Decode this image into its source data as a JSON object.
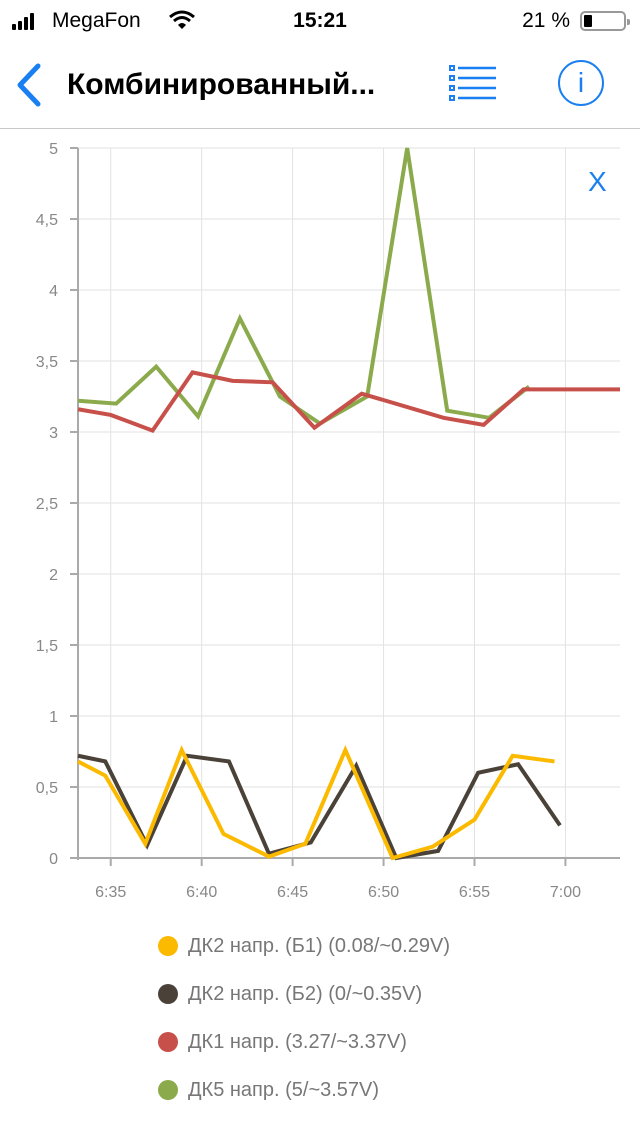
{
  "status_bar": {
    "carrier": "MegaFon",
    "time": "15:21",
    "battery": "21 %",
    "battery_level": 0.21
  },
  "nav": {
    "title": "Комбинированный...",
    "back_icon": "chevron-left-icon",
    "list_icon": "list-icon",
    "info_icon": "info-icon",
    "info_label": "i"
  },
  "close_label": "X",
  "colors": {
    "accent": "#1a7ff0"
  },
  "chart_data": {
    "type": "line",
    "title": "",
    "xlabel": "",
    "ylabel": "",
    "x_unit": "minutes after 6:30",
    "xlim": [
      3.2,
      33.0
    ],
    "ylim": [
      0,
      5
    ],
    "grid": true,
    "legend_position": "bottom",
    "y_ticks": [
      {
        "value": 0,
        "label": "0"
      },
      {
        "value": 0.5,
        "label": "0,5"
      },
      {
        "value": 1,
        "label": "1"
      },
      {
        "value": 1.5,
        "label": "1,5"
      },
      {
        "value": 2,
        "label": "2"
      },
      {
        "value": 2.5,
        "label": "2,5"
      },
      {
        "value": 3,
        "label": "3"
      },
      {
        "value": 3.5,
        "label": "3,5"
      },
      {
        "value": 4,
        "label": "4"
      },
      {
        "value": 4.5,
        "label": "4,5"
      },
      {
        "value": 5,
        "label": "5"
      }
    ],
    "x_ticks": [
      {
        "value": 5,
        "label": "6:35"
      },
      {
        "value": 10,
        "label": "6:40"
      },
      {
        "value": 15,
        "label": "6:45"
      },
      {
        "value": 20,
        "label": "6:50"
      },
      {
        "value": 25,
        "label": "6:55"
      },
      {
        "value": 30,
        "label": "7:00"
      }
    ],
    "series": [
      {
        "name": "ДК2 напр. (Б1) (0.08/~0.29V)",
        "color": "#FBBA00",
        "x": [
          3.2,
          4.7,
          6.9,
          8.9,
          11.2,
          13.7,
          15.7,
          17.9,
          20.5,
          22.7,
          25.0,
          27.1,
          29.4
        ],
        "y": [
          0.68,
          0.58,
          0.1,
          0.76,
          0.17,
          0.01,
          0.1,
          0.76,
          0.0,
          0.08,
          0.27,
          0.72,
          0.68
        ]
      },
      {
        "name": "ДК2 напр. (Б2) (0/~0.35V)",
        "color": "#4A4238",
        "x": [
          3.2,
          4.7,
          7.0,
          9.2,
          11.5,
          13.7,
          16.0,
          18.5,
          20.7,
          23.0,
          25.2,
          27.4,
          29.7
        ],
        "y": [
          0.72,
          0.68,
          0.09,
          0.72,
          0.68,
          0.03,
          0.11,
          0.65,
          0.0,
          0.05,
          0.6,
          0.66,
          0.23
        ]
      },
      {
        "name": "ДК1 напр. (3.27/~3.37V)",
        "color": "#C8504A",
        "x": [
          3.2,
          5.0,
          7.3,
          9.5,
          11.7,
          13.9,
          16.2,
          18.8,
          23.3,
          25.5,
          27.7,
          29.9,
          33.0
        ],
        "y": [
          3.16,
          3.12,
          3.01,
          3.42,
          3.36,
          3.35,
          3.03,
          3.27,
          3.1,
          3.05,
          3.3,
          3.3,
          3.3
        ]
      },
      {
        "name": "ДК5 напр. (5/~3.57V)",
        "color": "#8BAA4C",
        "x": [
          3.2,
          5.3,
          7.5,
          9.8,
          12.1,
          14.3,
          16.5,
          19.1,
          21.3,
          23.5,
          25.8,
          28.0
        ],
        "y": [
          3.22,
          3.2,
          3.46,
          3.11,
          3.8,
          3.25,
          3.06,
          3.25,
          5.0,
          3.15,
          3.1,
          3.32
        ]
      }
    ]
  }
}
